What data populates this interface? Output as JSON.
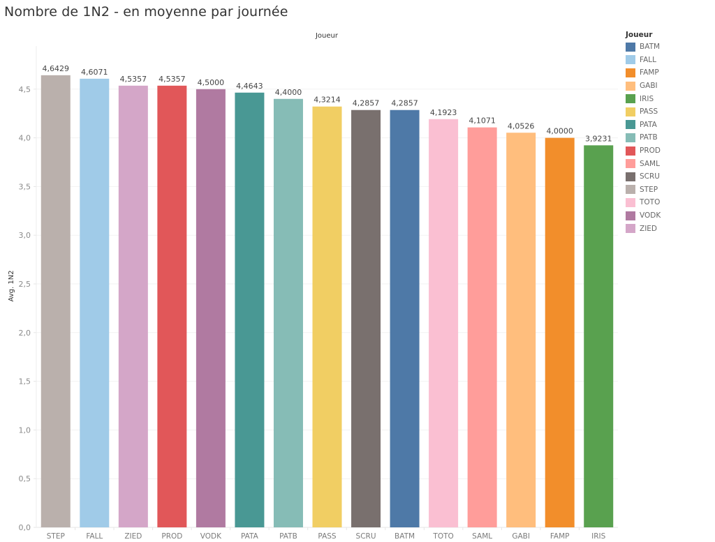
{
  "title": "Nombre de 1N2 - en moyenne par journée",
  "chart_data": {
    "type": "bar",
    "title": "Nombre de 1N2 - en moyenne par journée",
    "column_header": "Joueur",
    "xlabel": "",
    "ylabel": "Avg. 1N2",
    "ylim": [
      0,
      4.7
    ],
    "yticks": [
      "0,0",
      "0,5",
      "1,0",
      "1,5",
      "2,0",
      "2,5",
      "3,0",
      "3,5",
      "4,0",
      "4,5"
    ],
    "ytick_values": [
      0,
      0.5,
      1.0,
      1.5,
      2.0,
      2.5,
      3.0,
      3.5,
      4.0,
      4.5
    ],
    "grid": true,
    "categories": [
      "STEP",
      "FALL",
      "ZIED",
      "PROD",
      "VODK",
      "PATA",
      "PATB",
      "PASS",
      "SCRU",
      "BATM",
      "TOTO",
      "SAML",
      "GABI",
      "FAMP",
      "IRIS"
    ],
    "values": [
      4.6429,
      4.6071,
      4.5357,
      4.5357,
      4.5,
      4.4643,
      4.4,
      4.3214,
      4.2857,
      4.2857,
      4.1923,
      4.1071,
      4.0526,
      4.0,
      3.9231
    ],
    "value_labels": [
      "4,6429",
      "4,6071",
      "4,5357",
      "4,5357",
      "4,5000",
      "4,4643",
      "4,4000",
      "4,3214",
      "4,2857",
      "4,2857",
      "4,1923",
      "4,1071",
      "4,0526",
      "4,0000",
      "3,9231"
    ],
    "colors": {
      "BATM": "#4e79a7",
      "FALL": "#a0cbe8",
      "FAMP": "#f28e2b",
      "GABI": "#ffbe7d",
      "IRIS": "#59a14f",
      "PASS": "#f1ce63",
      "PATA": "#499894",
      "PATB": "#86bcb6",
      "PROD": "#e15759",
      "SAML": "#ff9d9a",
      "SCRU": "#79706e",
      "STEP": "#bab0ac",
      "TOTO": "#fabfd2",
      "VODK": "#b07aa1",
      "ZIED": "#d4a6c8"
    },
    "legend": {
      "title": "Joueur",
      "position": "right",
      "items": [
        "BATM",
        "FALL",
        "FAMP",
        "GABI",
        "IRIS",
        "PASS",
        "PATA",
        "PATB",
        "PROD",
        "SAML",
        "SCRU",
        "STEP",
        "TOTO",
        "VODK",
        "ZIED"
      ]
    }
  }
}
